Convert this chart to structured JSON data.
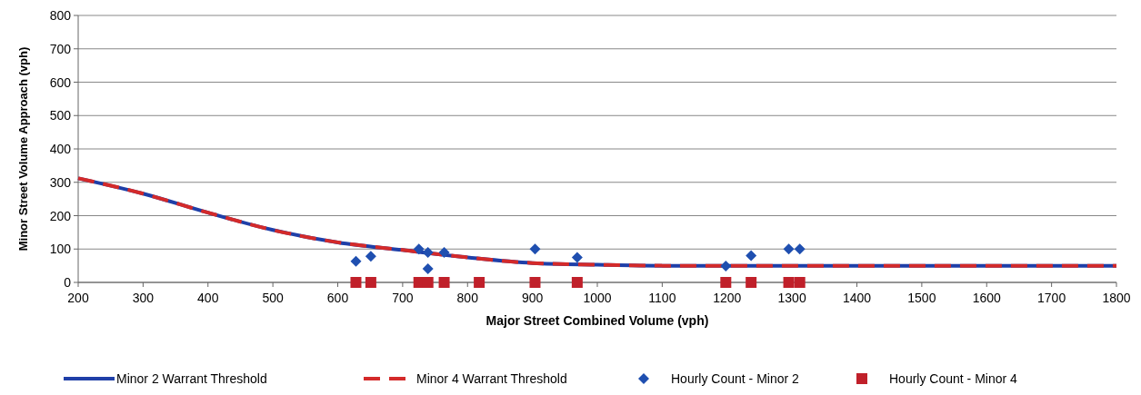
{
  "chart_data": {
    "type": "line",
    "xlabel": "Major Street Combined Volume (vph)",
    "ylabel": "Minor Street Volume Approach (vph)",
    "xlim": [
      200,
      1800
    ],
    "xticks": [
      200,
      300,
      400,
      500,
      600,
      700,
      800,
      900,
      1000,
      1100,
      1200,
      1300,
      1400,
      1500,
      1600,
      1700,
      1800
    ],
    "ylim": [
      0,
      800
    ],
    "yticks": [
      0,
      100,
      200,
      300,
      400,
      500,
      600,
      700,
      800
    ],
    "grid": "y",
    "legend": "bottom",
    "series": [
      {
        "name": "Minor 2 Warrant Threshold",
        "color": "#1f3fa8",
        "line_style": "solid",
        "marker": "none",
        "x": [
          200,
          300,
          400,
          500,
          600,
          700,
          800,
          900,
          1000,
          1100,
          1200,
          1300,
          1400,
          1500,
          1600,
          1700,
          1800
        ],
        "values": [
          312,
          266,
          209,
          157,
          120,
          97,
          75,
          58,
          53,
          50,
          50,
          50,
          50,
          50,
          50,
          50,
          50
        ]
      },
      {
        "name": "Minor 4 Warrant Threshold",
        "color": "#d42a2a",
        "line_style": "dashed",
        "marker": "none",
        "x": [
          200,
          300,
          400,
          500,
          600,
          700,
          800,
          900,
          1000,
          1100,
          1200,
          1300,
          1400,
          1500,
          1600,
          1700,
          1800
        ],
        "values": [
          312,
          266,
          209,
          157,
          120,
          97,
          75,
          58,
          53,
          50,
          50,
          50,
          50,
          50,
          50,
          50,
          50
        ]
      },
      {
        "name": "Hourly Count - Minor 2",
        "type": "scatter",
        "color": "#1f4fb0",
        "marker": "diamond",
        "x": [
          628,
          651,
          725,
          739,
          739,
          764,
          904,
          969,
          1198,
          1237,
          1295,
          1312
        ],
        "values": [
          63,
          78,
          100,
          90,
          41,
          90,
          100,
          75,
          49,
          80,
          100,
          100
        ]
      },
      {
        "name": "Hourly Count - Minor 4",
        "type": "scatter",
        "color": "#c0202a",
        "marker": "square",
        "x": [
          628,
          651,
          725,
          739,
          764,
          818,
          904,
          969,
          1198,
          1237,
          1295,
          1312
        ],
        "values": [
          0,
          0,
          0,
          0,
          0,
          0,
          0,
          0,
          0,
          0,
          0,
          0
        ]
      }
    ]
  }
}
